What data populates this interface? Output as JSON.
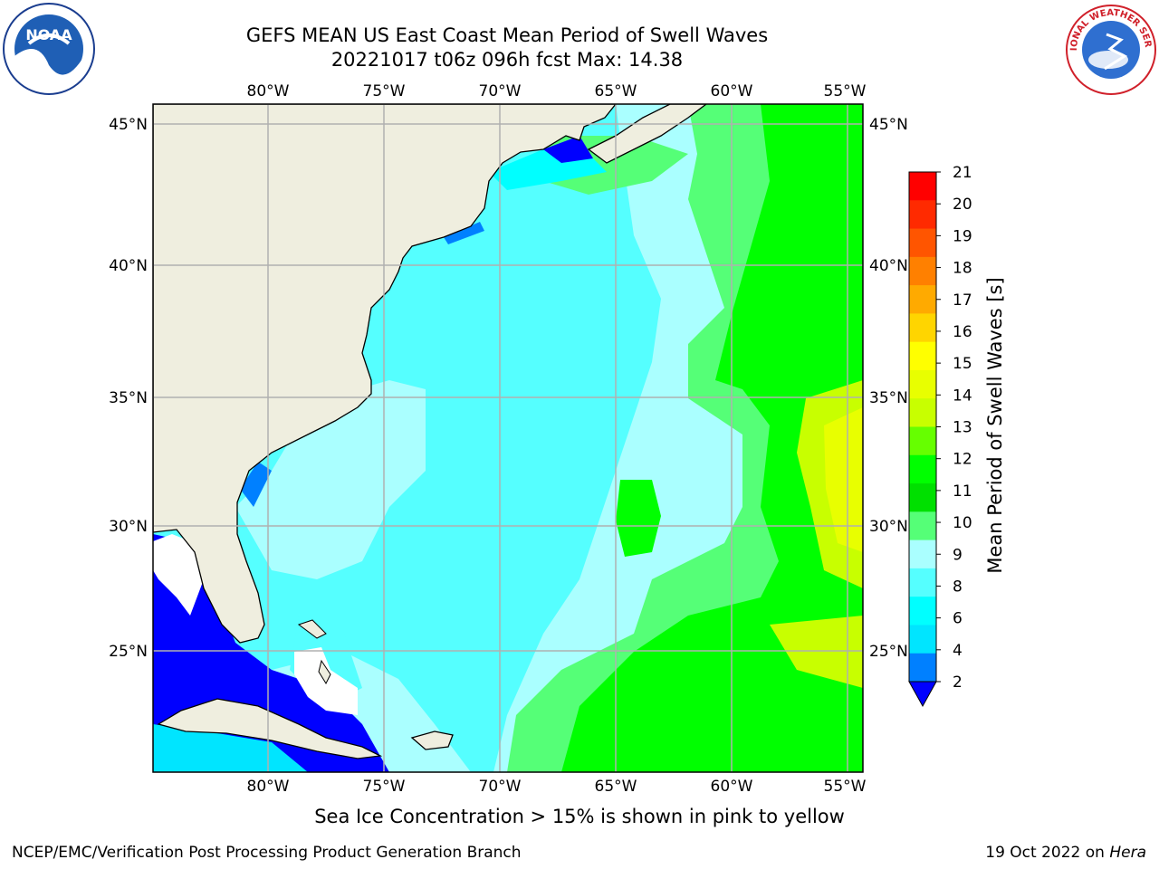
{
  "title": {
    "line1": "GEFS MEAN US East Coast Mean Period of Swell Waves",
    "line2": "20221017 t06z 096h fcst   Max: 14.38"
  },
  "logos": {
    "left": "noaa-logo",
    "right": "national-weather-service-logo",
    "left_text": "NOAA",
    "right_text": "NATIONAL WEATHER SERVICE"
  },
  "map": {
    "lon_labels": [
      "80°W",
      "75°W",
      "70°W",
      "65°W",
      "60°W",
      "55°W"
    ],
    "lat_labels": [
      "45°N",
      "40°N",
      "35°N",
      "30°N",
      "25°N"
    ],
    "extent": {
      "lon_min": -84.4,
      "lon_max": -54.4,
      "lat_min": 20.5,
      "lat_max": 45.8
    },
    "colors": {
      "land": "#efeedf",
      "grid": "#b0b0b0",
      "coast": "#000000",
      "no_data": "#ffffff"
    }
  },
  "colorbar": {
    "label": "Mean Period of Swell Waves [s]",
    "ticks": [
      "21",
      "20",
      "19",
      "18",
      "17",
      "16",
      "15",
      "14",
      "13",
      "12",
      "11",
      "10",
      "9",
      "8",
      "6",
      "4",
      "2"
    ],
    "colors_top_to_bottom": [
      "#ff0000",
      "#ff2a00",
      "#ff5500",
      "#ff8000",
      "#ffaa00",
      "#ffd500",
      "#ffff00",
      "#e8ff00",
      "#c8ff00",
      "#66ff00",
      "#00ff00",
      "#00e000",
      "#55ff77",
      "#aaffff",
      "#55ffff",
      "#00ffff",
      "#00e5ff",
      "#0080ff"
    ],
    "extend_color": "#0000ff"
  },
  "note": "Sea Ice Concentration > 15% is shown in pink to yellow",
  "footer": {
    "left": "NCEP/EMC/Verification Post Processing Product Generation Branch",
    "right_date": "19 Oct 2022 on ",
    "right_host": "Hera"
  }
}
